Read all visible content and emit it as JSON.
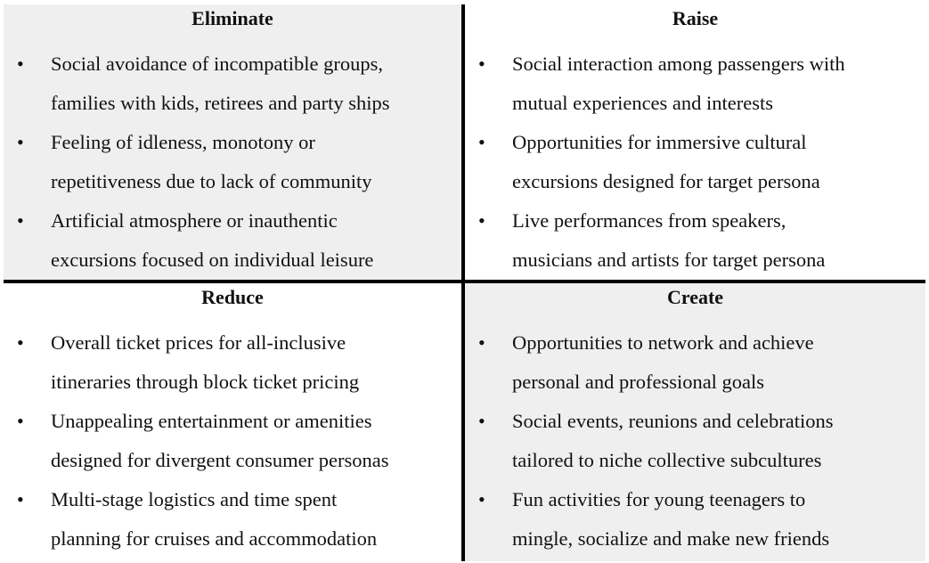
{
  "quadrants": {
    "eliminate": {
      "title": "Eliminate",
      "items": [
        {
          "line1": "Social avoidance of incompatible groups,",
          "line2": "families with kids, retirees and party ships"
        },
        {
          "line1": "Feeling of idleness, monotony or",
          "line2": "repetitiveness due to lack of community"
        },
        {
          "line1": "Artificial atmosphere or inauthentic",
          "line2": "excursions focused on individual leisure"
        }
      ]
    },
    "raise": {
      "title": "Raise",
      "items": [
        {
          "line1": "Social interaction among passengers with",
          "line2": "mutual experiences and interests"
        },
        {
          "line1": "Opportunities for immersive cultural",
          "line2": "excursions designed for target persona"
        },
        {
          "line1": "Live performances from speakers,",
          "line2": "musicians and artists for target persona"
        }
      ]
    },
    "reduce": {
      "title": "Reduce",
      "items": [
        {
          "line1": "Overall ticket prices for all-inclusive",
          "line2": "itineraries through block ticket pricing"
        },
        {
          "line1": "Unappealing entertainment or amenities",
          "line2": "designed for divergent consumer personas"
        },
        {
          "line1": "Multi-stage logistics and time spent",
          "line2": "planning for cruises and accommodation"
        }
      ]
    },
    "create": {
      "title": "Create",
      "items": [
        {
          "line1": "Opportunities to network and achieve",
          "line2": "personal and professional goals"
        },
        {
          "line1": "Social events, reunions and celebrations",
          "line2": "tailored to niche collective subcultures"
        },
        {
          "line1": "Fun activities for young teenagers to",
          "line2": "mingle, socialize and make new friends"
        }
      ]
    }
  },
  "bullet_glyph": "•",
  "colors": {
    "shaded_cell": "#efefef",
    "divider": "#000000"
  }
}
